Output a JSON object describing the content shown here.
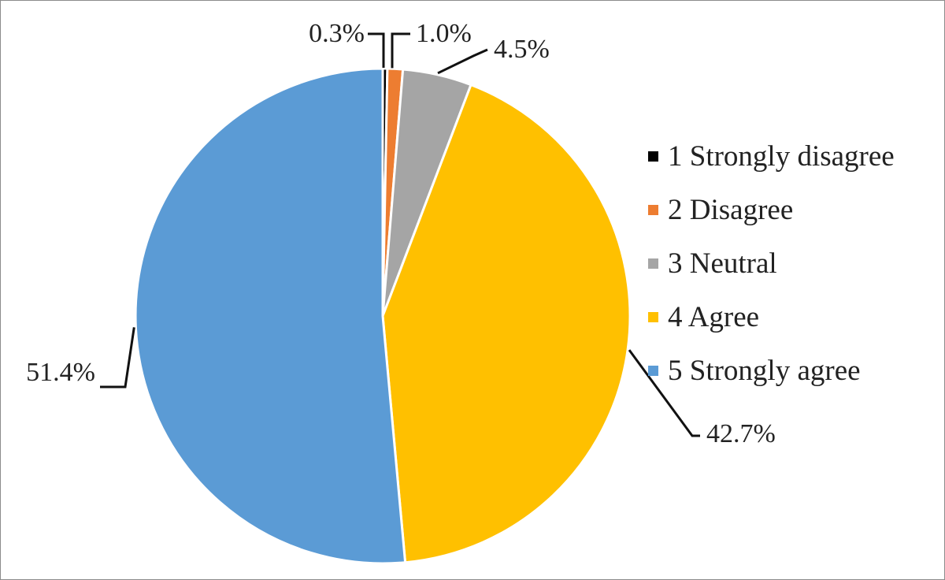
{
  "chart_data": {
    "type": "pie",
    "title": "",
    "categories": [
      "1 Strongly disagree",
      "2 Disagree",
      "3 Neutral",
      "4 Agree",
      "5 Strongly agree"
    ],
    "values": [
      0.3,
      1.0,
      4.5,
      42.7,
      51.4
    ],
    "value_labels": [
      "0.3%",
      "1.0%",
      "4.5%",
      "42.7%",
      "51.4%"
    ],
    "unit": "%",
    "colors": [
      "#000000",
      "#ed7d31",
      "#a5a5a5",
      "#ffc000",
      "#5b9bd5"
    ],
    "start_angle": "12 o'clock",
    "direction": "clockwise",
    "legend_position": "right"
  }
}
